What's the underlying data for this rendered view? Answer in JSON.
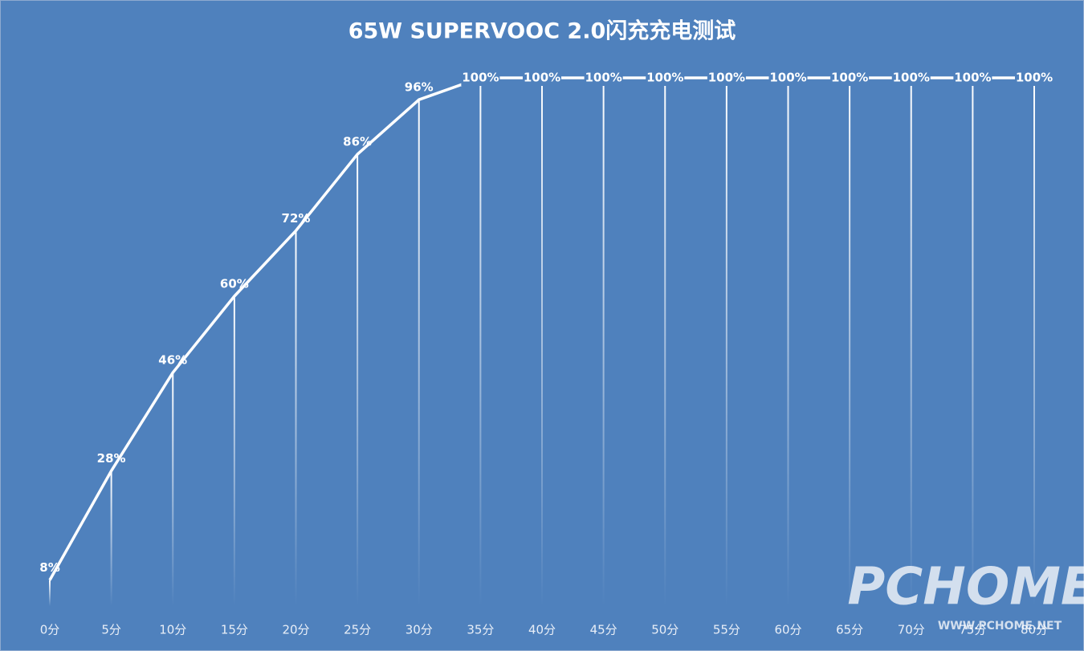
{
  "chart_data": {
    "type": "line",
    "title": "65W SUPERVOOC 2.0闪充充电测试",
    "categories": [
      "0分",
      "5分",
      "10分",
      "15分",
      "20分",
      "25分",
      "30分",
      "35分",
      "40分",
      "45分",
      "50分",
      "55分",
      "60分",
      "65分",
      "70分",
      "75分",
      "80分"
    ],
    "values": [
      8,
      28,
      46,
      60,
      72,
      86,
      96,
      100,
      100,
      100,
      100,
      100,
      100,
      100,
      100,
      100,
      100
    ],
    "value_labels": [
      "8%",
      "28%",
      "46%",
      "60%",
      "72%",
      "86%",
      "96%",
      "100%",
      "100%",
      "100%",
      "100%",
      "100%",
      "100%",
      "100%",
      "100%",
      "100%",
      "100%"
    ],
    "color": "#ffffff",
    "background": "#4f81bd",
    "watermark": {
      "logo": "PCHOME",
      "url": "WWW.PCHOME.NET"
    }
  }
}
